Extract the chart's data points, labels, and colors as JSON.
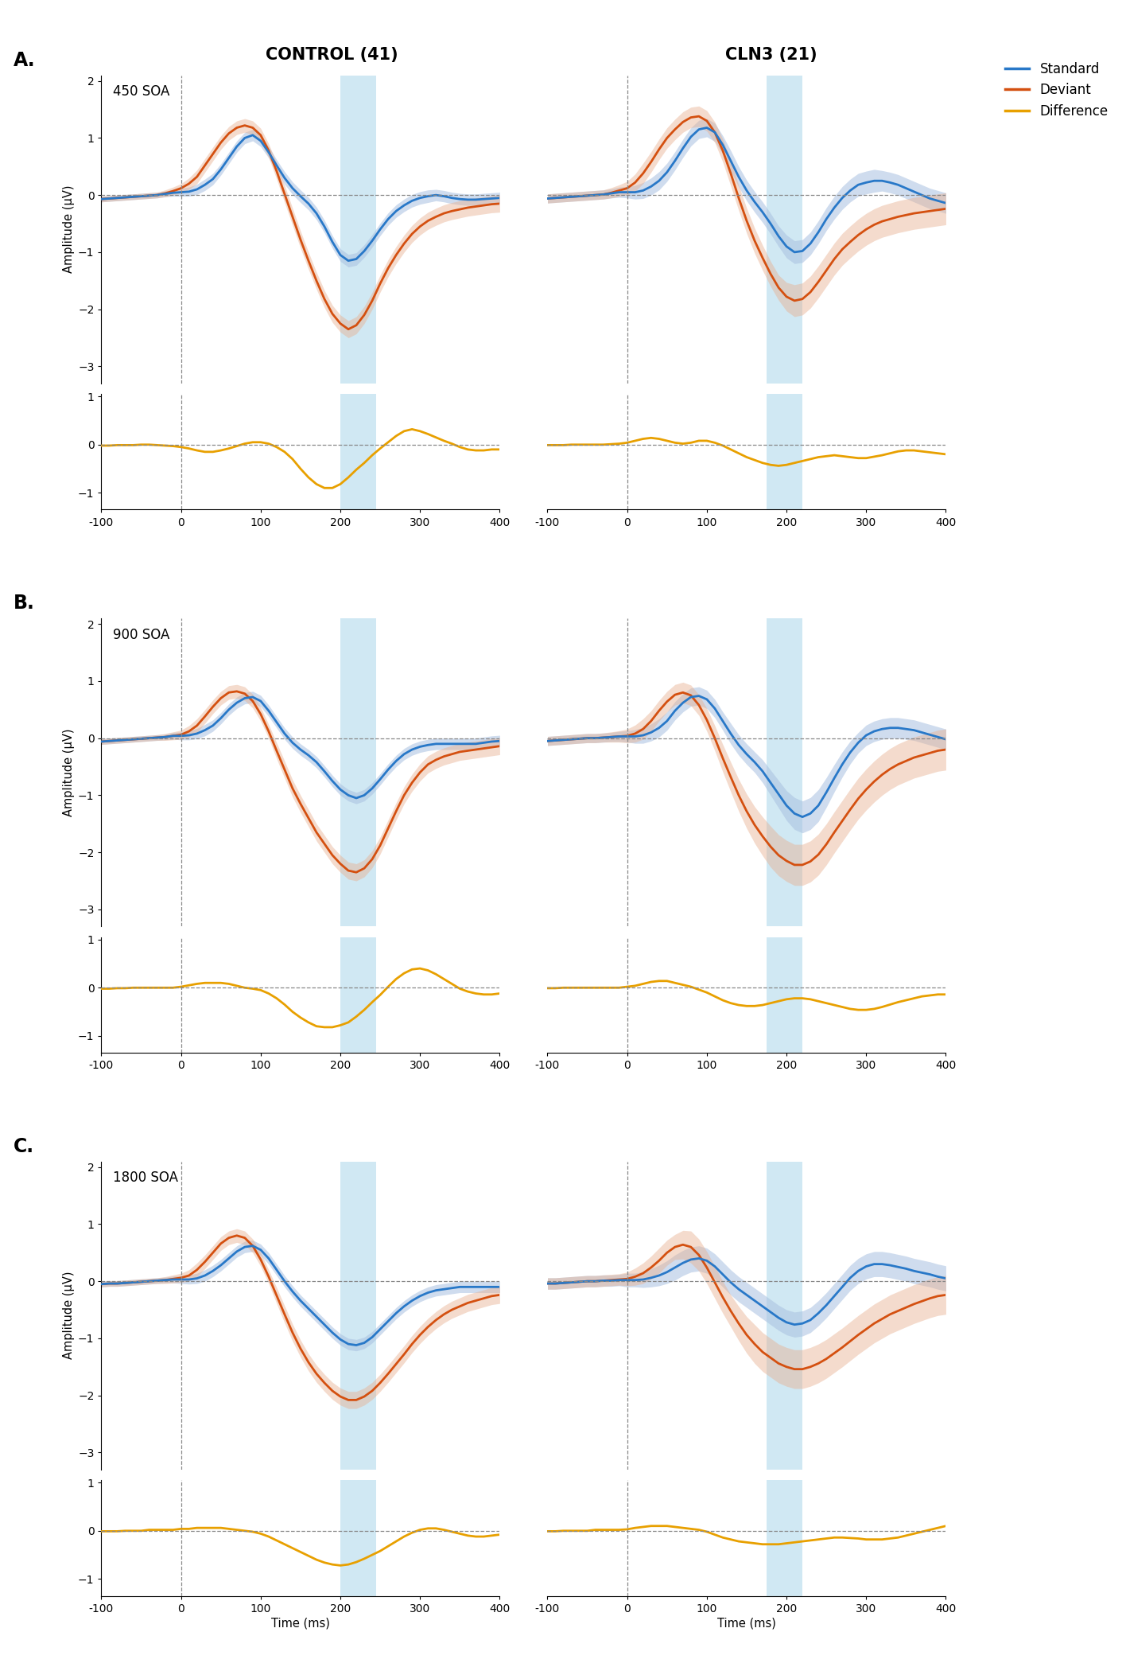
{
  "title_left": "CONTROL (41)",
  "title_right": "CLN3 (21)",
  "soa_labels": [
    "450 SOA",
    "900 SOA",
    "1800 SOA"
  ],
  "row_labels": [
    "A.",
    "B.",
    "C."
  ],
  "xlim": [
    -100,
    400
  ],
  "x_ticks": [
    -100,
    0,
    100,
    200,
    300,
    400
  ],
  "upper_ylim": [
    -3.3,
    2.1
  ],
  "upper_yticks": [
    -3,
    -2,
    -1,
    0,
    1,
    2
  ],
  "lower_ylim": [
    -1.35,
    1.05
  ],
  "lower_yticks": [
    -1,
    0,
    1
  ],
  "shading_ctrl": [
    200,
    245
  ],
  "shading_cln3": [
    175,
    220
  ],
  "blue_shade_color": "#c8e4f2",
  "std_color": "#2878c8",
  "dev_color": "#d45010",
  "diff_color": "#e8a000",
  "std_shade_color": "#a8c0e0",
  "dev_shade_color": "#e8b090",
  "t": [
    -100,
    -90,
    -80,
    -70,
    -60,
    -50,
    -40,
    -30,
    -20,
    -10,
    0,
    10,
    20,
    30,
    40,
    50,
    60,
    70,
    80,
    90,
    100,
    110,
    120,
    130,
    140,
    150,
    160,
    170,
    180,
    190,
    200,
    210,
    220,
    230,
    240,
    250,
    260,
    270,
    280,
    290,
    300,
    310,
    320,
    330,
    340,
    350,
    360,
    370,
    380,
    390,
    400
  ],
  "A_ctrl_std": [
    -0.07,
    -0.06,
    -0.05,
    -0.04,
    -0.03,
    -0.02,
    -0.01,
    0.0,
    0.02,
    0.04,
    0.05,
    0.06,
    0.1,
    0.18,
    0.28,
    0.45,
    0.65,
    0.85,
    1.0,
    1.05,
    0.95,
    0.75,
    0.52,
    0.3,
    0.12,
    -0.02,
    -0.15,
    -0.32,
    -0.55,
    -0.82,
    -1.05,
    -1.15,
    -1.12,
    -0.98,
    -0.8,
    -0.6,
    -0.42,
    -0.28,
    -0.18,
    -0.1,
    -0.05,
    -0.02,
    0.0,
    -0.02,
    -0.05,
    -0.07,
    -0.08,
    -0.08,
    -0.07,
    -0.06,
    -0.05
  ],
  "A_ctrl_dev": [
    -0.07,
    -0.06,
    -0.05,
    -0.04,
    -0.03,
    -0.02,
    -0.01,
    0.0,
    0.03,
    0.07,
    0.12,
    0.2,
    0.32,
    0.52,
    0.72,
    0.92,
    1.08,
    1.18,
    1.22,
    1.18,
    1.05,
    0.78,
    0.42,
    0.02,
    -0.38,
    -0.78,
    -1.15,
    -1.5,
    -1.82,
    -2.08,
    -2.25,
    -2.35,
    -2.28,
    -2.1,
    -1.85,
    -1.55,
    -1.28,
    -1.05,
    -0.85,
    -0.68,
    -0.55,
    -0.45,
    -0.38,
    -0.32,
    -0.28,
    -0.25,
    -0.22,
    -0.2,
    -0.18,
    -0.16,
    -0.15
  ],
  "A_ctrl_diff": [
    -0.02,
    -0.02,
    -0.01,
    -0.01,
    -0.01,
    0.0,
    0.0,
    -0.01,
    -0.02,
    -0.03,
    -0.05,
    -0.08,
    -0.12,
    -0.15,
    -0.15,
    -0.12,
    -0.08,
    -0.03,
    0.02,
    0.05,
    0.05,
    0.02,
    -0.05,
    -0.15,
    -0.3,
    -0.5,
    -0.68,
    -0.82,
    -0.9,
    -0.9,
    -0.82,
    -0.68,
    -0.52,
    -0.38,
    -0.22,
    -0.08,
    0.05,
    0.18,
    0.28,
    0.32,
    0.28,
    0.22,
    0.15,
    0.08,
    0.02,
    -0.05,
    -0.1,
    -0.12,
    -0.12,
    -0.1,
    -0.1
  ],
  "A_ctrl_std_se": [
    0.05,
    0.05,
    0.05,
    0.05,
    0.05,
    0.05,
    0.05,
    0.05,
    0.05,
    0.06,
    0.07,
    0.08,
    0.09,
    0.1,
    0.1,
    0.1,
    0.1,
    0.1,
    0.1,
    0.1,
    0.1,
    0.1,
    0.1,
    0.11,
    0.11,
    0.11,
    0.11,
    0.11,
    0.11,
    0.11,
    0.11,
    0.11,
    0.11,
    0.11,
    0.11,
    0.11,
    0.11,
    0.11,
    0.11,
    0.11,
    0.11,
    0.11,
    0.1,
    0.1,
    0.1,
    0.1,
    0.1,
    0.1,
    0.1,
    0.1,
    0.1
  ],
  "A_ctrl_dev_se": [
    0.05,
    0.05,
    0.05,
    0.05,
    0.05,
    0.05,
    0.05,
    0.05,
    0.06,
    0.07,
    0.08,
    0.1,
    0.12,
    0.12,
    0.12,
    0.12,
    0.12,
    0.12,
    0.12,
    0.12,
    0.12,
    0.12,
    0.14,
    0.15,
    0.15,
    0.15,
    0.15,
    0.15,
    0.15,
    0.15,
    0.15,
    0.15,
    0.15,
    0.15,
    0.15,
    0.15,
    0.15,
    0.15,
    0.15,
    0.15,
    0.15,
    0.15,
    0.15,
    0.15,
    0.15,
    0.15,
    0.15,
    0.15,
    0.15,
    0.15,
    0.15
  ],
  "A_cln3_std": [
    -0.06,
    -0.05,
    -0.04,
    -0.03,
    -0.02,
    -0.01,
    0.0,
    0.01,
    0.03,
    0.05,
    0.05,
    0.05,
    0.08,
    0.15,
    0.25,
    0.4,
    0.6,
    0.82,
    1.02,
    1.15,
    1.18,
    1.1,
    0.88,
    0.6,
    0.32,
    0.08,
    -0.12,
    -0.3,
    -0.5,
    -0.72,
    -0.9,
    -1.0,
    -0.98,
    -0.85,
    -0.65,
    -0.42,
    -0.22,
    -0.05,
    0.08,
    0.18,
    0.22,
    0.25,
    0.25,
    0.22,
    0.18,
    0.12,
    0.06,
    0.0,
    -0.06,
    -0.1,
    -0.14
  ],
  "A_cln3_dev": [
    -0.06,
    -0.05,
    -0.04,
    -0.03,
    -0.02,
    -0.01,
    0.0,
    0.01,
    0.04,
    0.08,
    0.12,
    0.22,
    0.38,
    0.58,
    0.8,
    1.0,
    1.15,
    1.28,
    1.36,
    1.38,
    1.3,
    1.1,
    0.78,
    0.38,
    -0.05,
    -0.45,
    -0.8,
    -1.1,
    -1.38,
    -1.62,
    -1.78,
    -1.85,
    -1.82,
    -1.7,
    -1.52,
    -1.32,
    -1.12,
    -0.95,
    -0.82,
    -0.7,
    -0.6,
    -0.52,
    -0.46,
    -0.42,
    -0.38,
    -0.35,
    -0.32,
    -0.3,
    -0.28,
    -0.26,
    -0.24
  ],
  "A_cln3_diff": [
    -0.01,
    -0.01,
    -0.01,
    0.0,
    0.0,
    0.0,
    0.0,
    0.0,
    0.01,
    0.02,
    0.04,
    0.08,
    0.12,
    0.14,
    0.12,
    0.08,
    0.04,
    0.02,
    0.04,
    0.08,
    0.08,
    0.04,
    -0.02,
    -0.1,
    -0.18,
    -0.26,
    -0.32,
    -0.38,
    -0.42,
    -0.44,
    -0.42,
    -0.38,
    -0.34,
    -0.3,
    -0.26,
    -0.24,
    -0.22,
    -0.24,
    -0.26,
    -0.28,
    -0.28,
    -0.25,
    -0.22,
    -0.18,
    -0.14,
    -0.12,
    -0.12,
    -0.14,
    -0.16,
    -0.18,
    -0.2
  ],
  "A_cln3_std_se": [
    0.08,
    0.08,
    0.08,
    0.08,
    0.08,
    0.08,
    0.08,
    0.08,
    0.08,
    0.09,
    0.1,
    0.12,
    0.14,
    0.15,
    0.16,
    0.16,
    0.16,
    0.16,
    0.16,
    0.16,
    0.16,
    0.16,
    0.16,
    0.18,
    0.18,
    0.18,
    0.18,
    0.18,
    0.18,
    0.18,
    0.2,
    0.2,
    0.2,
    0.2,
    0.2,
    0.2,
    0.2,
    0.2,
    0.2,
    0.2,
    0.2,
    0.2,
    0.18,
    0.18,
    0.18,
    0.18,
    0.18,
    0.18,
    0.18,
    0.18,
    0.18
  ],
  "A_cln3_dev_se": [
    0.08,
    0.08,
    0.08,
    0.08,
    0.08,
    0.08,
    0.08,
    0.08,
    0.09,
    0.1,
    0.12,
    0.15,
    0.18,
    0.18,
    0.18,
    0.18,
    0.18,
    0.18,
    0.18,
    0.18,
    0.18,
    0.18,
    0.2,
    0.22,
    0.22,
    0.22,
    0.22,
    0.22,
    0.22,
    0.22,
    0.25,
    0.28,
    0.28,
    0.28,
    0.28,
    0.28,
    0.28,
    0.28,
    0.28,
    0.28,
    0.28,
    0.28,
    0.28,
    0.28,
    0.28,
    0.28,
    0.28,
    0.28,
    0.28,
    0.28,
    0.28
  ],
  "B_ctrl_std": [
    -0.06,
    -0.05,
    -0.04,
    -0.03,
    -0.02,
    -0.01,
    0.0,
    0.01,
    0.02,
    0.04,
    0.04,
    0.05,
    0.08,
    0.14,
    0.22,
    0.35,
    0.5,
    0.62,
    0.7,
    0.72,
    0.65,
    0.48,
    0.28,
    0.08,
    -0.08,
    -0.2,
    -0.3,
    -0.42,
    -0.58,
    -0.75,
    -0.9,
    -1.0,
    -1.05,
    -1.0,
    -0.88,
    -0.72,
    -0.55,
    -0.4,
    -0.28,
    -0.2,
    -0.15,
    -0.12,
    -0.1,
    -0.1,
    -0.1,
    -0.1,
    -0.1,
    -0.1,
    -0.08,
    -0.06,
    -0.05
  ],
  "B_ctrl_dev": [
    -0.06,
    -0.05,
    -0.04,
    -0.03,
    -0.02,
    -0.01,
    0.0,
    0.01,
    0.02,
    0.04,
    0.06,
    0.12,
    0.22,
    0.38,
    0.55,
    0.7,
    0.8,
    0.82,
    0.78,
    0.65,
    0.42,
    0.12,
    -0.22,
    -0.55,
    -0.88,
    -1.15,
    -1.4,
    -1.65,
    -1.85,
    -2.05,
    -2.2,
    -2.32,
    -2.35,
    -2.28,
    -2.12,
    -1.88,
    -1.58,
    -1.28,
    -1.0,
    -0.78,
    -0.6,
    -0.46,
    -0.38,
    -0.32,
    -0.28,
    -0.24,
    -0.22,
    -0.2,
    -0.18,
    -0.16,
    -0.14
  ],
  "B_ctrl_diff": [
    -0.02,
    -0.02,
    -0.01,
    -0.01,
    0.0,
    0.0,
    0.0,
    0.0,
    0.0,
    0.0,
    0.02,
    0.05,
    0.08,
    0.1,
    0.1,
    0.1,
    0.08,
    0.04,
    0.0,
    -0.02,
    -0.05,
    -0.12,
    -0.22,
    -0.35,
    -0.5,
    -0.62,
    -0.72,
    -0.8,
    -0.82,
    -0.82,
    -0.78,
    -0.72,
    -0.6,
    -0.46,
    -0.3,
    -0.15,
    0.02,
    0.18,
    0.3,
    0.38,
    0.4,
    0.36,
    0.28,
    0.18,
    0.08,
    -0.02,
    -0.08,
    -0.12,
    -0.14,
    -0.14,
    -0.12
  ],
  "B_ctrl_std_se": [
    0.05,
    0.05,
    0.05,
    0.05,
    0.05,
    0.05,
    0.05,
    0.05,
    0.05,
    0.06,
    0.07,
    0.08,
    0.09,
    0.1,
    0.1,
    0.1,
    0.1,
    0.1,
    0.1,
    0.1,
    0.1,
    0.1,
    0.1,
    0.1,
    0.1,
    0.1,
    0.1,
    0.1,
    0.1,
    0.1,
    0.1,
    0.1,
    0.1,
    0.1,
    0.1,
    0.1,
    0.1,
    0.1,
    0.1,
    0.1,
    0.1,
    0.1,
    0.1,
    0.1,
    0.1,
    0.1,
    0.1,
    0.1,
    0.1,
    0.1,
    0.1
  ],
  "B_ctrl_dev_se": [
    0.05,
    0.05,
    0.05,
    0.05,
    0.05,
    0.05,
    0.05,
    0.05,
    0.06,
    0.07,
    0.08,
    0.1,
    0.12,
    0.12,
    0.12,
    0.12,
    0.12,
    0.12,
    0.12,
    0.12,
    0.12,
    0.12,
    0.14,
    0.15,
    0.15,
    0.15,
    0.15,
    0.15,
    0.15,
    0.15,
    0.15,
    0.15,
    0.15,
    0.15,
    0.15,
    0.15,
    0.15,
    0.15,
    0.15,
    0.15,
    0.15,
    0.15,
    0.15,
    0.15,
    0.15,
    0.15,
    0.15,
    0.15,
    0.15,
    0.15,
    0.15
  ],
  "B_cln3_std": [
    -0.05,
    -0.04,
    -0.03,
    -0.02,
    -0.01,
    0.0,
    0.0,
    0.01,
    0.02,
    0.03,
    0.03,
    0.03,
    0.05,
    0.1,
    0.18,
    0.3,
    0.48,
    0.62,
    0.72,
    0.74,
    0.68,
    0.52,
    0.3,
    0.08,
    -0.12,
    -0.28,
    -0.42,
    -0.58,
    -0.78,
    -0.98,
    -1.18,
    -1.32,
    -1.38,
    -1.32,
    -1.18,
    -0.95,
    -0.7,
    -0.46,
    -0.25,
    -0.08,
    0.05,
    0.12,
    0.16,
    0.18,
    0.18,
    0.16,
    0.14,
    0.1,
    0.06,
    0.02,
    -0.02
  ],
  "B_cln3_dev": [
    -0.05,
    -0.04,
    -0.03,
    -0.02,
    -0.01,
    0.0,
    0.0,
    0.01,
    0.02,
    0.03,
    0.04,
    0.08,
    0.16,
    0.3,
    0.48,
    0.64,
    0.76,
    0.8,
    0.75,
    0.58,
    0.32,
    0.0,
    -0.35,
    -0.68,
    -1.0,
    -1.28,
    -1.52,
    -1.72,
    -1.9,
    -2.05,
    -2.15,
    -2.22,
    -2.22,
    -2.16,
    -2.04,
    -1.86,
    -1.65,
    -1.45,
    -1.25,
    -1.06,
    -0.9,
    -0.76,
    -0.64,
    -0.54,
    -0.46,
    -0.4,
    -0.34,
    -0.3,
    -0.26,
    -0.22,
    -0.2
  ],
  "B_cln3_diff": [
    -0.01,
    -0.01,
    0.0,
    0.0,
    0.0,
    0.0,
    0.0,
    0.0,
    0.0,
    0.0,
    0.02,
    0.04,
    0.08,
    0.12,
    0.14,
    0.14,
    0.1,
    0.06,
    0.02,
    -0.04,
    -0.1,
    -0.18,
    -0.26,
    -0.32,
    -0.36,
    -0.38,
    -0.38,
    -0.36,
    -0.32,
    -0.28,
    -0.24,
    -0.22,
    -0.22,
    -0.24,
    -0.28,
    -0.32,
    -0.36,
    -0.4,
    -0.44,
    -0.46,
    -0.46,
    -0.44,
    -0.4,
    -0.35,
    -0.3,
    -0.26,
    -0.22,
    -0.18,
    -0.16,
    -0.14,
    -0.14
  ],
  "B_cln3_std_se": [
    0.08,
    0.08,
    0.08,
    0.08,
    0.08,
    0.08,
    0.08,
    0.08,
    0.08,
    0.09,
    0.1,
    0.12,
    0.14,
    0.15,
    0.16,
    0.16,
    0.16,
    0.16,
    0.16,
    0.16,
    0.16,
    0.16,
    0.16,
    0.18,
    0.18,
    0.18,
    0.18,
    0.2,
    0.22,
    0.24,
    0.26,
    0.28,
    0.28,
    0.28,
    0.28,
    0.26,
    0.24,
    0.22,
    0.2,
    0.18,
    0.18,
    0.18,
    0.18,
    0.18,
    0.18,
    0.18,
    0.18,
    0.18,
    0.18,
    0.18,
    0.18
  ],
  "B_cln3_dev_se": [
    0.08,
    0.08,
    0.08,
    0.08,
    0.08,
    0.08,
    0.08,
    0.08,
    0.09,
    0.1,
    0.12,
    0.15,
    0.18,
    0.18,
    0.18,
    0.18,
    0.18,
    0.18,
    0.18,
    0.18,
    0.2,
    0.22,
    0.24,
    0.26,
    0.28,
    0.3,
    0.32,
    0.34,
    0.36,
    0.36,
    0.36,
    0.36,
    0.36,
    0.36,
    0.36,
    0.36,
    0.36,
    0.36,
    0.36,
    0.36,
    0.36,
    0.36,
    0.36,
    0.36,
    0.36,
    0.36,
    0.36,
    0.36,
    0.36,
    0.36,
    0.36
  ],
  "C_ctrl_std": [
    -0.05,
    -0.04,
    -0.04,
    -0.03,
    -0.02,
    -0.01,
    0.0,
    0.01,
    0.02,
    0.03,
    0.03,
    0.03,
    0.05,
    0.1,
    0.18,
    0.28,
    0.4,
    0.52,
    0.6,
    0.62,
    0.55,
    0.4,
    0.2,
    0.0,
    -0.18,
    -0.34,
    -0.48,
    -0.62,
    -0.76,
    -0.9,
    -1.02,
    -1.1,
    -1.12,
    -1.08,
    -0.98,
    -0.84,
    -0.7,
    -0.56,
    -0.44,
    -0.34,
    -0.26,
    -0.2,
    -0.16,
    -0.14,
    -0.12,
    -0.1,
    -0.1,
    -0.1,
    -0.1,
    -0.1,
    -0.1
  ],
  "C_ctrl_dev": [
    -0.05,
    -0.04,
    -0.04,
    -0.03,
    -0.02,
    -0.01,
    0.0,
    0.01,
    0.02,
    0.04,
    0.06,
    0.1,
    0.2,
    0.34,
    0.5,
    0.66,
    0.76,
    0.8,
    0.76,
    0.62,
    0.38,
    0.08,
    -0.25,
    -0.58,
    -0.9,
    -1.18,
    -1.42,
    -1.62,
    -1.78,
    -1.92,
    -2.02,
    -2.08,
    -2.08,
    -2.02,
    -1.92,
    -1.78,
    -1.62,
    -1.45,
    -1.28,
    -1.1,
    -0.94,
    -0.8,
    -0.68,
    -0.58,
    -0.5,
    -0.44,
    -0.38,
    -0.34,
    -0.3,
    -0.26,
    -0.24
  ],
  "C_ctrl_diff": [
    -0.01,
    -0.01,
    -0.01,
    0.0,
    0.0,
    0.0,
    0.02,
    0.02,
    0.02,
    0.02,
    0.04,
    0.04,
    0.06,
    0.06,
    0.06,
    0.06,
    0.04,
    0.02,
    0.0,
    -0.02,
    -0.06,
    -0.12,
    -0.2,
    -0.28,
    -0.36,
    -0.44,
    -0.52,
    -0.6,
    -0.66,
    -0.7,
    -0.72,
    -0.7,
    -0.65,
    -0.58,
    -0.5,
    -0.42,
    -0.32,
    -0.22,
    -0.12,
    -0.04,
    0.02,
    0.05,
    0.05,
    0.02,
    -0.02,
    -0.06,
    -0.1,
    -0.12,
    -0.12,
    -0.1,
    -0.08
  ],
  "C_ctrl_std_se": [
    0.05,
    0.05,
    0.05,
    0.05,
    0.05,
    0.05,
    0.05,
    0.05,
    0.05,
    0.06,
    0.07,
    0.08,
    0.09,
    0.1,
    0.1,
    0.1,
    0.1,
    0.1,
    0.1,
    0.1,
    0.1,
    0.1,
    0.1,
    0.1,
    0.1,
    0.1,
    0.1,
    0.1,
    0.1,
    0.1,
    0.1,
    0.1,
    0.1,
    0.1,
    0.1,
    0.1,
    0.1,
    0.1,
    0.1,
    0.1,
    0.1,
    0.1,
    0.1,
    0.1,
    0.1,
    0.1,
    0.1,
    0.1,
    0.1,
    0.1,
    0.1
  ],
  "C_ctrl_dev_se": [
    0.05,
    0.05,
    0.05,
    0.05,
    0.05,
    0.05,
    0.05,
    0.05,
    0.06,
    0.07,
    0.08,
    0.1,
    0.12,
    0.12,
    0.12,
    0.12,
    0.12,
    0.12,
    0.12,
    0.12,
    0.12,
    0.12,
    0.14,
    0.15,
    0.15,
    0.15,
    0.15,
    0.15,
    0.15,
    0.15,
    0.15,
    0.15,
    0.15,
    0.15,
    0.15,
    0.15,
    0.15,
    0.15,
    0.15,
    0.15,
    0.15,
    0.15,
    0.15,
    0.15,
    0.15,
    0.15,
    0.15,
    0.15,
    0.15,
    0.15,
    0.15
  ],
  "C_cln3_std": [
    -0.04,
    -0.04,
    -0.03,
    -0.02,
    -0.01,
    0.0,
    0.0,
    0.01,
    0.01,
    0.02,
    0.02,
    0.02,
    0.03,
    0.06,
    0.1,
    0.16,
    0.24,
    0.32,
    0.38,
    0.4,
    0.36,
    0.26,
    0.12,
    -0.02,
    -0.14,
    -0.24,
    -0.34,
    -0.44,
    -0.54,
    -0.64,
    -0.72,
    -0.76,
    -0.74,
    -0.68,
    -0.56,
    -0.42,
    -0.26,
    -0.1,
    0.06,
    0.18,
    0.26,
    0.3,
    0.3,
    0.28,
    0.25,
    0.22,
    0.18,
    0.15,
    0.12,
    0.08,
    0.05
  ],
  "C_cln3_dev": [
    -0.04,
    -0.04,
    -0.03,
    -0.02,
    -0.01,
    0.0,
    0.0,
    0.01,
    0.02,
    0.03,
    0.04,
    0.08,
    0.14,
    0.24,
    0.36,
    0.5,
    0.6,
    0.64,
    0.6,
    0.46,
    0.24,
    -0.02,
    -0.28,
    -0.52,
    -0.74,
    -0.94,
    -1.1,
    -1.24,
    -1.34,
    -1.44,
    -1.5,
    -1.54,
    -1.54,
    -1.5,
    -1.44,
    -1.36,
    -1.26,
    -1.16,
    -1.05,
    -0.94,
    -0.84,
    -0.74,
    -0.66,
    -0.58,
    -0.52,
    -0.46,
    -0.4,
    -0.35,
    -0.3,
    -0.26,
    -0.24
  ],
  "C_cln3_diff": [
    -0.01,
    -0.01,
    0.0,
    0.0,
    0.0,
    0.0,
    0.02,
    0.02,
    0.02,
    0.02,
    0.03,
    0.06,
    0.08,
    0.1,
    0.1,
    0.1,
    0.08,
    0.06,
    0.04,
    0.02,
    -0.02,
    -0.08,
    -0.14,
    -0.18,
    -0.22,
    -0.24,
    -0.26,
    -0.28,
    -0.28,
    -0.28,
    -0.26,
    -0.24,
    -0.22,
    -0.2,
    -0.18,
    -0.16,
    -0.14,
    -0.14,
    -0.15,
    -0.16,
    -0.18,
    -0.18,
    -0.18,
    -0.16,
    -0.14,
    -0.1,
    -0.06,
    -0.02,
    0.02,
    0.06,
    0.1
  ],
  "C_cln3_std_se": [
    0.1,
    0.1,
    0.1,
    0.1,
    0.1,
    0.1,
    0.1,
    0.1,
    0.1,
    0.1,
    0.12,
    0.12,
    0.14,
    0.16,
    0.18,
    0.2,
    0.22,
    0.22,
    0.22,
    0.22,
    0.22,
    0.22,
    0.22,
    0.22,
    0.22,
    0.22,
    0.22,
    0.22,
    0.22,
    0.22,
    0.22,
    0.22,
    0.22,
    0.22,
    0.22,
    0.22,
    0.22,
    0.22,
    0.22,
    0.22,
    0.22,
    0.22,
    0.22,
    0.22,
    0.22,
    0.22,
    0.22,
    0.22,
    0.22,
    0.22,
    0.22
  ],
  "C_cln3_dev_se": [
    0.1,
    0.1,
    0.1,
    0.1,
    0.1,
    0.1,
    0.1,
    0.1,
    0.1,
    0.1,
    0.12,
    0.15,
    0.18,
    0.2,
    0.22,
    0.22,
    0.22,
    0.25,
    0.28,
    0.28,
    0.28,
    0.28,
    0.28,
    0.28,
    0.3,
    0.32,
    0.34,
    0.34,
    0.34,
    0.34,
    0.34,
    0.34,
    0.34,
    0.34,
    0.34,
    0.34,
    0.34,
    0.34,
    0.34,
    0.34,
    0.34,
    0.34,
    0.34,
    0.34,
    0.34,
    0.34,
    0.34,
    0.34,
    0.34,
    0.34,
    0.34
  ]
}
